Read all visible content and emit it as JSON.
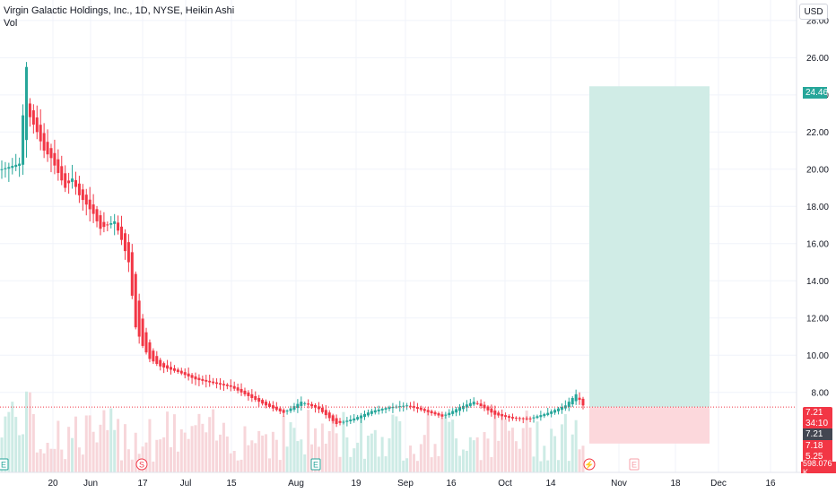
{
  "title": "Virgin Galactic Holdings, Inc., 1D, NYSE, Heikin Ashi",
  "vol_label": "Vol",
  "currency": "USD",
  "colors": {
    "up": "#26a69a",
    "down": "#f23645",
    "vol_up": "#cdebe5",
    "vol_down": "#f7d6da",
    "target": "#d0ece6",
    "stop": "#fcd8dc",
    "grid": "#f0f3fa"
  },
  "tags": {
    "target": "24.46",
    "last": "7.21",
    "countdown": "34:10",
    "vwap": "7.21",
    "level2": "7.18",
    "stop": "5.25",
    "volume": "598.076 K"
  },
  "events": [
    {
      "symbol": "E",
      "kind": "earnings",
      "color": "#26a69a"
    },
    {
      "symbol": "S",
      "kind": "split",
      "color": "#f23645"
    },
    {
      "symbol": "E",
      "kind": "earnings",
      "color": "#26a69a"
    },
    {
      "symbol": "⚡",
      "kind": "news",
      "color": "#f23645"
    },
    {
      "symbol": "E",
      "kind": "earnings-upcoming",
      "color": "#f7a0aa"
    }
  ],
  "chart_data": {
    "type": "candlestick",
    "chart_style": "Heikin Ashi",
    "y_ticks": [
      "28.00",
      "26.00",
      "24.00",
      "22.00",
      "20.00",
      "18.00",
      "16.00",
      "14.00",
      "12.00",
      "10.00",
      "8.00"
    ],
    "y_tick_values": [
      28,
      26,
      24,
      22,
      20,
      18,
      16,
      14,
      12,
      10,
      8
    ],
    "ylim": [
      3.7,
      29.1
    ],
    "x_ticks": [
      "20",
      "Jun",
      "17",
      "Jul",
      "15",
      "Aug",
      "19",
      "Sep",
      "16",
      "Oct",
      "14",
      "Nov",
      "18",
      "Dec",
      "16"
    ],
    "candle_count": 150,
    "close_anchors": [
      [
        0,
        20.0
      ],
      [
        5,
        20.3
      ],
      [
        7,
        25.5
      ],
      [
        8,
        22.8
      ],
      [
        10,
        22.0
      ],
      [
        12,
        21.0
      ],
      [
        14,
        20.6
      ],
      [
        16,
        19.8
      ],
      [
        18,
        19.0
      ],
      [
        20,
        19.5
      ],
      [
        22,
        18.6
      ],
      [
        24,
        18.1
      ],
      [
        26,
        17.6
      ],
      [
        28,
        16.8
      ],
      [
        30,
        17.0
      ],
      [
        32,
        17.2
      ],
      [
        34,
        16.2
      ],
      [
        36,
        15.0
      ],
      [
        37,
        13.2
      ],
      [
        38,
        11.5
      ],
      [
        40,
        10.5
      ],
      [
        42,
        9.8
      ],
      [
        45,
        9.4
      ],
      [
        50,
        9.1
      ],
      [
        55,
        8.7
      ],
      [
        60,
        8.5
      ],
      [
        65,
        8.3
      ],
      [
        70,
        7.8
      ],
      [
        75,
        7.3
      ],
      [
        80,
        6.9
      ],
      [
        85,
        7.5
      ],
      [
        90,
        7.1
      ],
      [
        95,
        6.3
      ],
      [
        100,
        6.6
      ],
      [
        105,
        7.0
      ],
      [
        110,
        7.2
      ],
      [
        115,
        7.3
      ],
      [
        120,
        7.0
      ],
      [
        125,
        6.7
      ],
      [
        130,
        7.2
      ],
      [
        134,
        7.5
      ],
      [
        140,
        6.8
      ],
      [
        145,
        6.6
      ],
      [
        150,
        6.6
      ],
      [
        155,
        6.9
      ],
      [
        160,
        7.3
      ],
      [
        163,
        7.9
      ],
      [
        165,
        7.3
      ]
    ],
    "position": {
      "type": "long",
      "entry": 7.21,
      "target": 24.46,
      "stop": 5.25
    },
    "last_price": 7.21
  }
}
